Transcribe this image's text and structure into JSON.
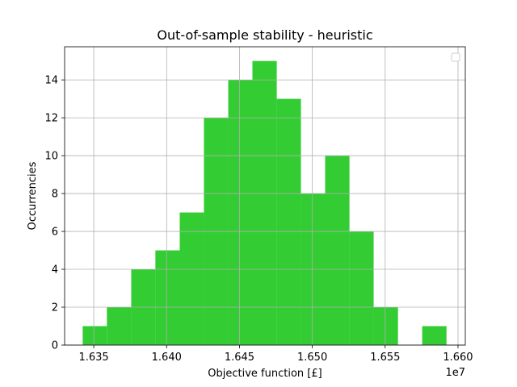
{
  "chart_data": {
    "type": "bar",
    "title": "Out-of-sample stability - heuristic",
    "xlabel": "Objective function [£]",
    "ylabel": "Occurrencies",
    "x_offset_label": "1e7",
    "x_ticks": [
      1.635,
      1.64,
      1.645,
      1.65,
      1.655,
      1.66
    ],
    "x_tick_labels": [
      "1.635",
      "1.640",
      "1.645",
      "1.650",
      "1.655",
      "1.660"
    ],
    "y_ticks": [
      0,
      2,
      4,
      6,
      8,
      10,
      12,
      14
    ],
    "y_tick_labels": [
      "0",
      "2",
      "4",
      "6",
      "8",
      "10",
      "12",
      "14"
    ],
    "xlim": [
      1.633,
      1.6605
    ],
    "ylim": [
      0,
      15.75
    ],
    "bin_edges": [
      1.63424,
      1.6359,
      1.63757,
      1.63923,
      1.6409,
      1.64256,
      1.64423,
      1.64589,
      1.64756,
      1.64922,
      1.65088,
      1.65255,
      1.65421,
      1.65588,
      1.65754,
      1.65921
    ],
    "counts": [
      1,
      2,
      4,
      5,
      7,
      12,
      14,
      15,
      13,
      8,
      10,
      6,
      2,
      0,
      1
    ],
    "bar_color": "#33cc33",
    "grid": true,
    "legend_placement": "top-right",
    "legend_entries": []
  }
}
